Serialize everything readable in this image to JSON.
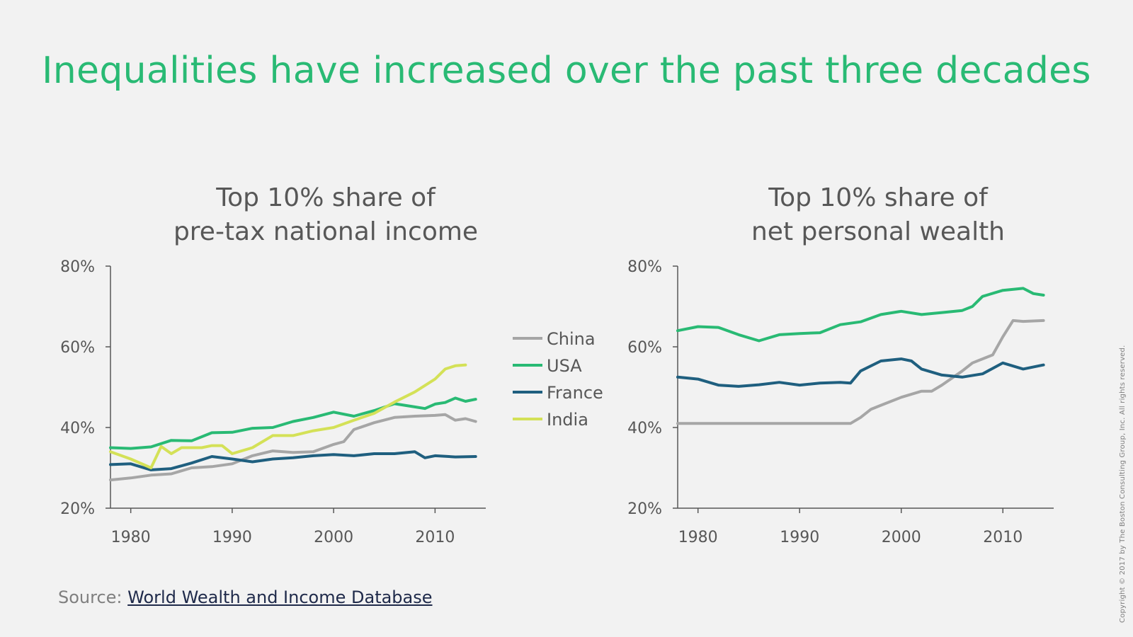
{
  "page": {
    "title": "Inequalities have increased over the past three decades",
    "source_label": "Source:",
    "source_link": "World Wealth and Income Database",
    "copyright": "Copyright © 2017 by The Boston Consulting Group, Inc. All rights reserved."
  },
  "colors": {
    "title": "#29ba74",
    "China": "#a6a6a6",
    "USA": "#29ba74",
    "France": "#1f5f7f",
    "India": "#d4e157"
  },
  "chart_data": [
    {
      "type": "line",
      "title_line1": "Top 10% share of",
      "title_line2": "pre-tax national income",
      "ylim": [
        20,
        80
      ],
      "xlim": [
        1978,
        2015
      ],
      "yticks": [
        20,
        40,
        60,
        80
      ],
      "ytick_labels": [
        "20%",
        "40%",
        "60%",
        "80%"
      ],
      "xticks": [
        1980,
        1990,
        2000,
        2010
      ],
      "xtick_labels": [
        "1980",
        "1990",
        "2000",
        "2010"
      ],
      "legend": [
        "China",
        "USA",
        "France",
        "India"
      ],
      "legend_position": "right",
      "series": [
        {
          "name": "China",
          "x": [
            1978,
            1980,
            1982,
            1984,
            1986,
            1988,
            1990,
            1992,
            1994,
            1996,
            1998,
            2000,
            2001,
            2002,
            2004,
            2006,
            2008,
            2010,
            2011,
            2012,
            2013,
            2014
          ],
          "values": [
            27,
            27.5,
            28.2,
            28.5,
            30,
            30.3,
            31,
            33,
            34.2,
            33.8,
            34,
            35.8,
            36.5,
            39.5,
            41.2,
            42.5,
            42.8,
            43,
            43.2,
            41.8,
            42.2,
            41.5
          ]
        },
        {
          "name": "USA",
          "x": [
            1978,
            1980,
            1982,
            1984,
            1986,
            1988,
            1990,
            1992,
            1994,
            1996,
            1998,
            2000,
            2002,
            2004,
            2006,
            2008,
            2009,
            2010,
            2011,
            2012,
            2013,
            2014
          ],
          "values": [
            35,
            34.8,
            35.2,
            36.8,
            36.7,
            38.7,
            38.8,
            39.8,
            40,
            41.5,
            42.5,
            43.8,
            42.8,
            44.2,
            45.9,
            45.1,
            44.7,
            45.8,
            46.2,
            47.3,
            46.5,
            47
          ]
        },
        {
          "name": "France",
          "x": [
            1978,
            1980,
            1982,
            1984,
            1986,
            1988,
            1990,
            1992,
            1994,
            1996,
            1998,
            2000,
            2002,
            2004,
            2006,
            2008,
            2009,
            2010,
            2012,
            2014
          ],
          "values": [
            30.8,
            31,
            29.5,
            29.8,
            31.2,
            32.8,
            32.2,
            31.5,
            32.2,
            32.5,
            33,
            33.3,
            33,
            33.5,
            33.5,
            34,
            32.5,
            33,
            32.7,
            32.8
          ]
        },
        {
          "name": "India",
          "x": [
            1978,
            1980,
            1982,
            1983,
            1984,
            1985,
            1987,
            1988,
            1989,
            1990,
            1992,
            1994,
            1996,
            1998,
            2000,
            2002,
            2004,
            2006,
            2008,
            2010,
            2011,
            2012,
            2013
          ],
          "values": [
            34,
            32.2,
            30,
            35.3,
            33.5,
            35,
            35,
            35.5,
            35.5,
            33.5,
            35,
            38,
            38,
            39.2,
            40,
            41.8,
            43.5,
            46.3,
            48.8,
            52,
            54.5,
            55.3,
            55.5
          ]
        }
      ]
    },
    {
      "type": "line",
      "title_line1": "Top 10% share of",
      "title_line2": "net personal wealth",
      "ylim": [
        20,
        80
      ],
      "xlim": [
        1978,
        2015
      ],
      "yticks": [
        20,
        40,
        60,
        80
      ],
      "ytick_labels": [
        "20%",
        "40%",
        "60%",
        "80%"
      ],
      "xticks": [
        1980,
        1990,
        2000,
        2010
      ],
      "xtick_labels": [
        "1980",
        "1990",
        "2000",
        "2010"
      ],
      "series": [
        {
          "name": "China",
          "x": [
            1978,
            1995,
            1996,
            1997,
            1998,
            2000,
            2002,
            2003,
            2004,
            2006,
            2007,
            2009,
            2010,
            2011,
            2012,
            2014
          ],
          "values": [
            41,
            41,
            42.5,
            44.5,
            45.5,
            47.5,
            49,
            49,
            50.5,
            54,
            56,
            58,
            62.5,
            66.5,
            66.3,
            66.5
          ]
        },
        {
          "name": "USA",
          "x": [
            1978,
            1980,
            1982,
            1984,
            1986,
            1988,
            1990,
            1992,
            1994,
            1996,
            1998,
            2000,
            2002,
            2004,
            2006,
            2007,
            2008,
            2010,
            2012,
            2013,
            2014
          ],
          "values": [
            64,
            65,
            64.8,
            63,
            61.5,
            63,
            63.3,
            63.5,
            65.5,
            66.2,
            68,
            68.8,
            68,
            68.5,
            69,
            70,
            72.5,
            74,
            74.5,
            73.2,
            72.8
          ]
        },
        {
          "name": "France",
          "x": [
            1978,
            1980,
            1982,
            1984,
            1986,
            1988,
            1990,
            1992,
            1994,
            1995,
            1996,
            1998,
            2000,
            2001,
            2002,
            2004,
            2006,
            2008,
            2010,
            2012,
            2014
          ],
          "values": [
            52.5,
            52,
            50.5,
            50.2,
            50.6,
            51.2,
            50.5,
            51,
            51.2,
            51,
            54,
            56.5,
            57,
            56.5,
            54.5,
            53,
            52.5,
            53.3,
            56,
            54.5,
            55.5
          ]
        }
      ]
    }
  ]
}
